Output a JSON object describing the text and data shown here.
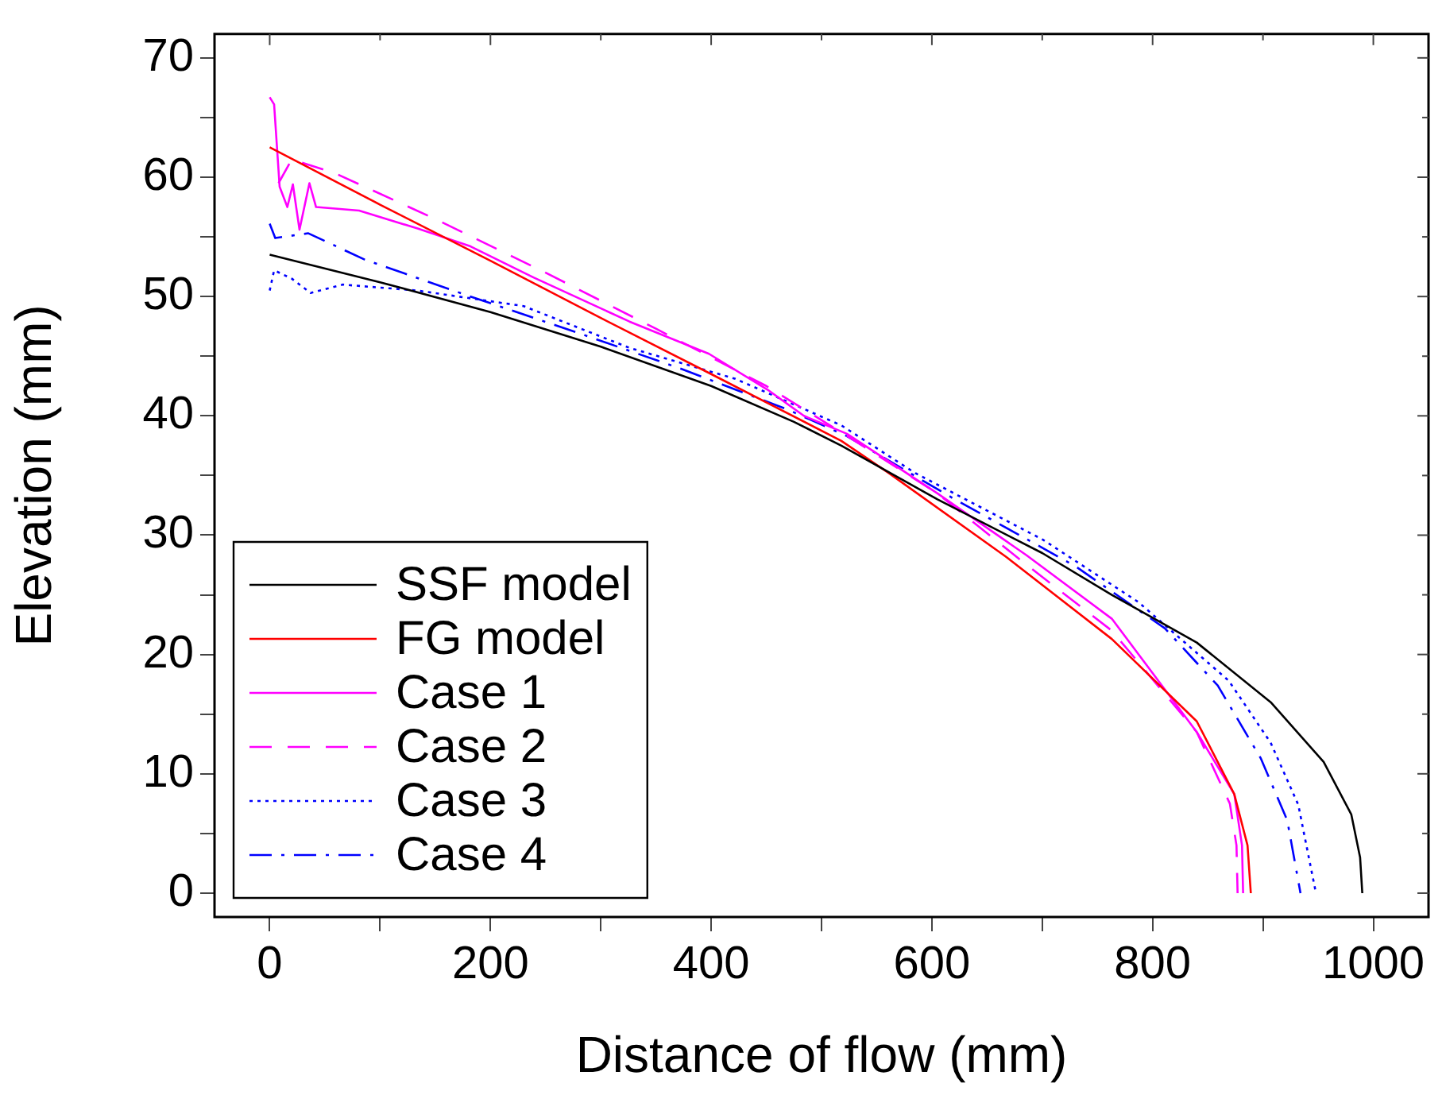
{
  "chart_data": {
    "type": "line",
    "xlabel": "Distance of flow (mm)",
    "ylabel": "Elevation (mm)",
    "xlim": [
      -50,
      1050
    ],
    "ylim": [
      -2,
      72
    ],
    "xticks": [
      0,
      {
        "value": 100,
        "label": null
      },
      200,
      {
        "value": 300,
        "label": null
      },
      400,
      {
        "value": 500,
        "label": null
      },
      600,
      {
        "value": 700,
        "label": null
      },
      800,
      {
        "value": 900,
        "label": null
      },
      1000
    ],
    "yticks": [
      0,
      {
        "value": 5,
        "label": null
      },
      10,
      {
        "value": 15,
        "label": null
      },
      20,
      {
        "value": 25,
        "label": null
      },
      30,
      {
        "value": 35,
        "label": null
      },
      40,
      {
        "value": 45,
        "label": null
      },
      50,
      {
        "value": 55,
        "label": null
      },
      60,
      {
        "value": 65,
        "label": null
      },
      70
    ],
    "grid": false,
    "legend": "bottom left",
    "marker": "none",
    "series": [
      {
        "name": "SSF model",
        "color": "#000000",
        "line_style": "solid",
        "x": [
          0,
          100,
          200,
          300,
          400,
          475,
          518,
          605,
          700,
          763,
          840,
          907,
          955,
          980,
          988,
          990
        ],
        "values": [
          53.5,
          51.2,
          48.7,
          45.8,
          42.5,
          39.5,
          37.5,
          33,
          28.5,
          25,
          21,
          16,
          11,
          6.6,
          3,
          0
        ]
      },
      {
        "name": "FG model",
        "color": "#ff0000",
        "line_style": "solid",
        "x": [
          0,
          100,
          200,
          300,
          400,
          518,
          561,
          667,
          763,
          840,
          874,
          886,
          889
        ],
        "values": [
          62.5,
          57.7,
          53,
          48.2,
          43.5,
          37.9,
          35.2,
          28.2,
          21.3,
          14.4,
          8.3,
          4,
          0
        ]
      },
      {
        "name": "Case 1",
        "color": "#ff00ff",
        "line_style": "solid",
        "x": [
          0,
          4,
          9,
          16,
          21,
          27,
          36,
          42,
          81,
          134,
          182,
          239,
          326,
          398,
          451,
          484,
          523,
          605,
          686,
          763,
          840,
          874,
          881,
          882
        ],
        "values": [
          66.7,
          66.1,
          59.2,
          57.5,
          59.4,
          55.6,
          59.5,
          57.5,
          57.2,
          55.7,
          54.2,
          51.6,
          47.9,
          45.2,
          42.2,
          40,
          38.5,
          33.5,
          28.3,
          23,
          13.5,
          8.3,
          4,
          0
        ]
      },
      {
        "name": "Case 2",
        "color": "#ff00ff",
        "line_style": "dashed",
        "x": [
          8,
          20,
          60,
          150,
          250,
          350,
          450,
          520,
          605,
          686,
          763,
          840,
          870,
          876,
          877
        ],
        "values": [
          59.5,
          61.5,
          60.3,
          56.5,
          52,
          47.3,
          42.5,
          38.5,
          33.5,
          27.5,
          22,
          13.5,
          7.5,
          4,
          0
        ]
      },
      {
        "name": "Case 3",
        "color": "#0000ff",
        "line_style": "dotted",
        "x": [
          0,
          4,
          20,
          37,
          66,
          134,
          230,
          326,
          422,
          518,
          585,
          701,
          787,
          869,
          907,
          932,
          948
        ],
        "values": [
          50.5,
          52.2,
          51.5,
          50.3,
          51,
          50.5,
          49.2,
          45.7,
          43.1,
          39.2,
          35.2,
          29.6,
          24.4,
          17.8,
          12.6,
          7.4,
          0
        ]
      },
      {
        "name": "Case 4",
        "color": "#0000ff",
        "line_style": "dashdot",
        "x": [
          0,
          5,
          35,
          86,
          182,
          278,
          374,
          470,
          523,
          619,
          730,
          811,
          859,
          898,
          922,
          934
        ],
        "values": [
          56.1,
          54.9,
          55.3,
          53.1,
          50,
          47,
          43.9,
          40.5,
          38.3,
          33.1,
          27.4,
          22.2,
          17.4,
          11.3,
          6.1,
          0
        ]
      }
    ]
  }
}
